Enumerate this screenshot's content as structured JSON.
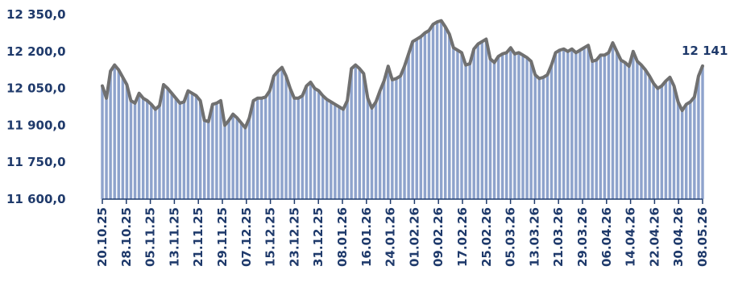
{
  "chart_data": {
    "type": "bar",
    "title": "",
    "xlabel": "",
    "ylabel": "",
    "ylim": [
      11600,
      12350
    ],
    "y_ticks": [
      "11 600,0",
      "11 750,0",
      "11 900,0",
      "12 050,0",
      "12 200,0",
      "12 350,0"
    ],
    "x_tick_labels": [
      "20.10.25",
      "28.10.25",
      "05.11.25",
      "13.11.25",
      "21.11.25",
      "29.11.25",
      "07.12.25",
      "15.12.25",
      "23.12.25",
      "31.12.25",
      "08.01.26",
      "16.01.26",
      "24.01.26",
      "01.02.26",
      "09.02.26",
      "17.02.26",
      "25.02.26",
      "05.03.26",
      "13.03.26",
      "21.03.26",
      "29.03.26",
      "06.04.26",
      "14.04.26",
      "22.04.26",
      "30.04.26",
      "08.05.26"
    ],
    "last_value_label": "12 141",
    "series_color": "#8EA3CC",
    "line_color": "#707070",
    "values": [
      12060,
      12010,
      12120,
      12145,
      12125,
      12095,
      12065,
      12000,
      11990,
      12030,
      12010,
      12000,
      11985,
      11965,
      11980,
      12065,
      12050,
      12030,
      12010,
      11990,
      11995,
      12040,
      12030,
      12020,
      12000,
      11920,
      11915,
      11985,
      11990,
      12000,
      11900,
      11920,
      11945,
      11930,
      11910,
      11890,
      11930,
      12000,
      12010,
      12010,
      12015,
      12040,
      12100,
      12120,
      12135,
      12100,
      12050,
      12010,
      12010,
      12020,
      12060,
      12075,
      12050,
      12040,
      12020,
      12005,
      11995,
      11985,
      11975,
      11965,
      12000,
      12130,
      12145,
      12130,
      12110,
      12010,
      11970,
      11995,
      12040,
      12080,
      12140,
      12085,
      12090,
      12100,
      12140,
      12190,
      12240,
      12250,
      12260,
      12275,
      12285,
      12310,
      12320,
      12325,
      12300,
      12270,
      12215,
      12205,
      12195,
      12145,
      12150,
      12210,
      12230,
      12240,
      12250,
      12170,
      12155,
      12180,
      12190,
      12195,
      12215,
      12190,
      12195,
      12185,
      12175,
      12160,
      12105,
      12090,
      12095,
      12105,
      12145,
      12195,
      12205,
      12210,
      12200,
      12210,
      12195,
      12205,
      12215,
      12225,
      12160,
      12165,
      12185,
      12185,
      12195,
      12235,
      12200,
      12165,
      12155,
      12140,
      12200,
      12160,
      12145,
      12125,
      12100,
      12070,
      12050,
      12060,
      12080,
      12095,
      12060,
      11995,
      11960,
      11985,
      11995,
      12015,
      12100,
      12141
    ]
  }
}
